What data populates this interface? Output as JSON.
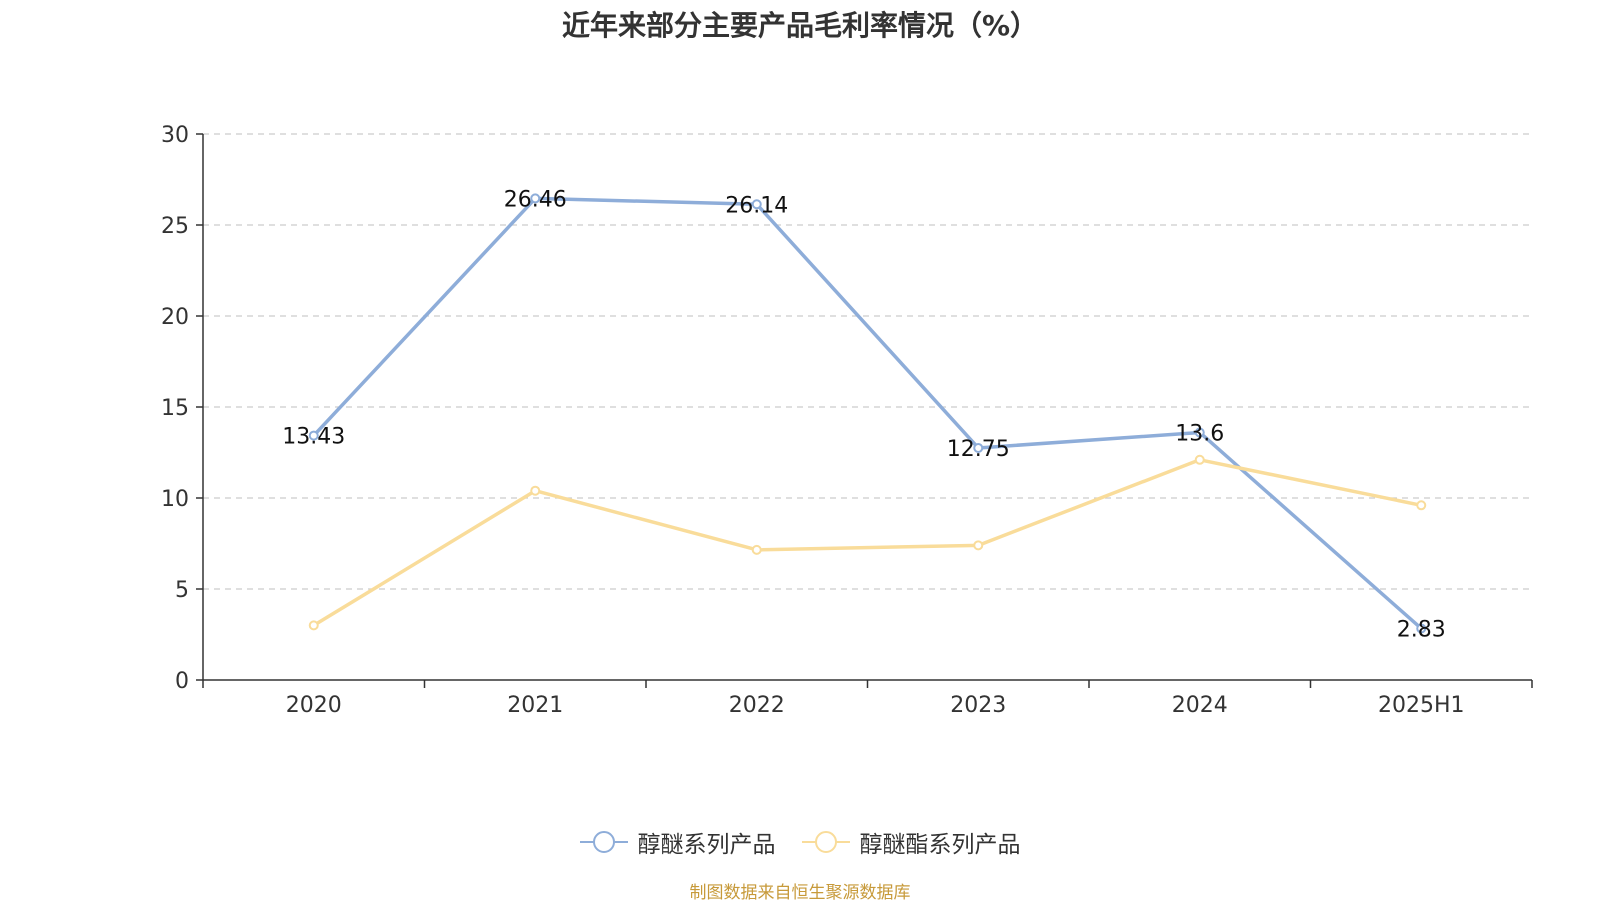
{
  "title": "近年来部分主要产品毛利率情况（%）",
  "source_note": "制图数据来自恒生聚源数据库",
  "colors": {
    "axis": "#333333",
    "grid": "#cccccc",
    "text": "#333333"
  },
  "chart_data": {
    "type": "line",
    "title": "近年来部分主要产品毛利率情况（%）",
    "categories": [
      "2020",
      "2021",
      "2022",
      "2023",
      "2024",
      "2025H1"
    ],
    "ylim": [
      0,
      30
    ],
    "yticks": [
      0,
      5,
      10,
      15,
      20,
      25,
      30
    ],
    "grid": true,
    "legend_position": "bottom",
    "series": [
      {
        "name": "醇醚系列产品",
        "color": "#8eadd9",
        "values": [
          13.43,
          26.46,
          26.14,
          12.75,
          13.6,
          2.83
        ],
        "labels": [
          "13.43",
          "26.46",
          "26.14",
          "12.75",
          "13.6",
          "2.83"
        ]
      },
      {
        "name": "醇醚酯系列产品",
        "color": "#f9dc9a",
        "values": [
          3.0,
          10.4,
          7.15,
          7.4,
          12.1,
          9.6
        ]
      }
    ]
  }
}
